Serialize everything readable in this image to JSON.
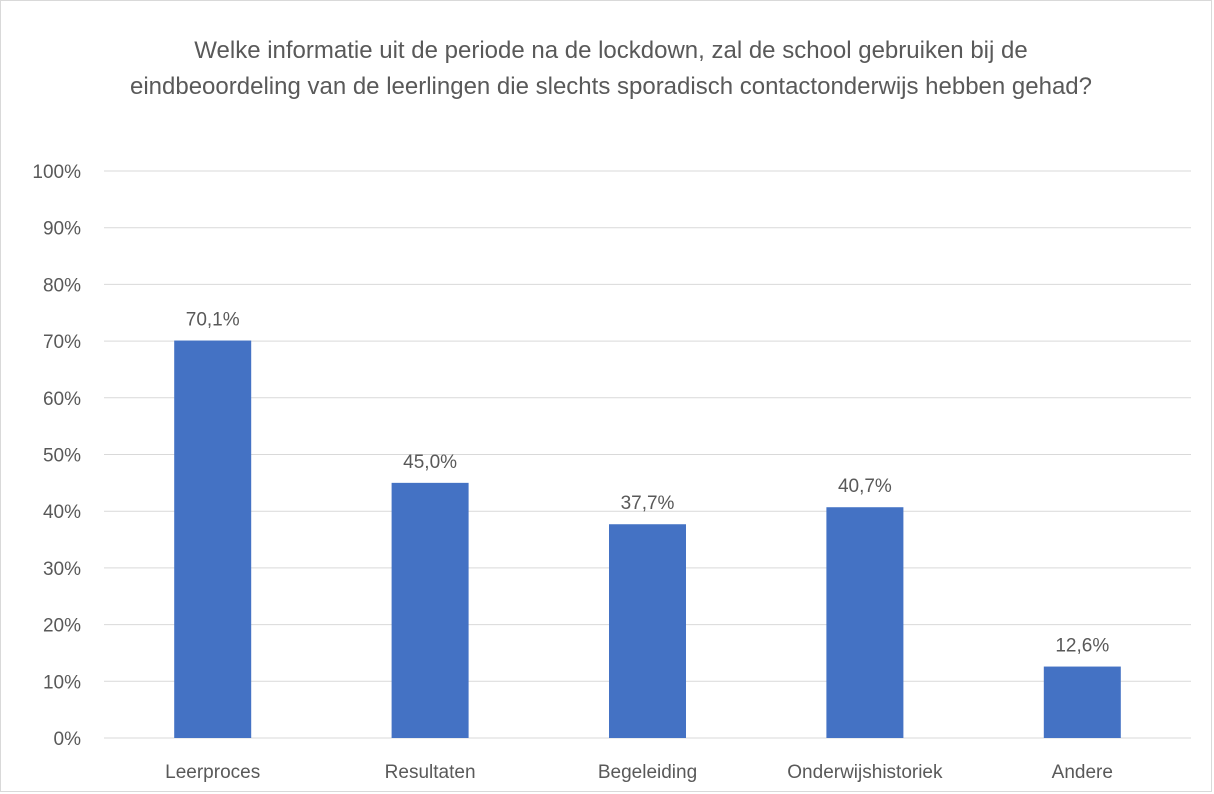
{
  "chart_data": {
    "type": "bar",
    "title": "Welke informatie uit de periode na de lockdown, zal de school gebruiken bij de eindbeoordeling van de leerlingen die slechts sporadisch contactonderwijs hebben gehad?",
    "categories": [
      "Leerproces",
      "Resultaten",
      "Begeleiding",
      "Onderwijshistoriek",
      "Andere"
    ],
    "values": [
      70.1,
      45.0,
      37.7,
      40.7,
      12.6
    ],
    "data_labels": [
      "70,1%",
      "45,0%",
      "37,7%",
      "40,7%",
      "12,6%"
    ],
    "yticks": [
      "0%",
      "10%",
      "20%",
      "30%",
      "40%",
      "50%",
      "60%",
      "70%",
      "80%",
      "90%",
      "100%"
    ],
    "ylim": [
      0,
      100
    ],
    "xlabel": "",
    "ylabel": "",
    "grid": true,
    "legend": "none",
    "bar_color": "#4472c4",
    "grid_color": "#d9d9d9",
    "text_color": "#595959"
  }
}
